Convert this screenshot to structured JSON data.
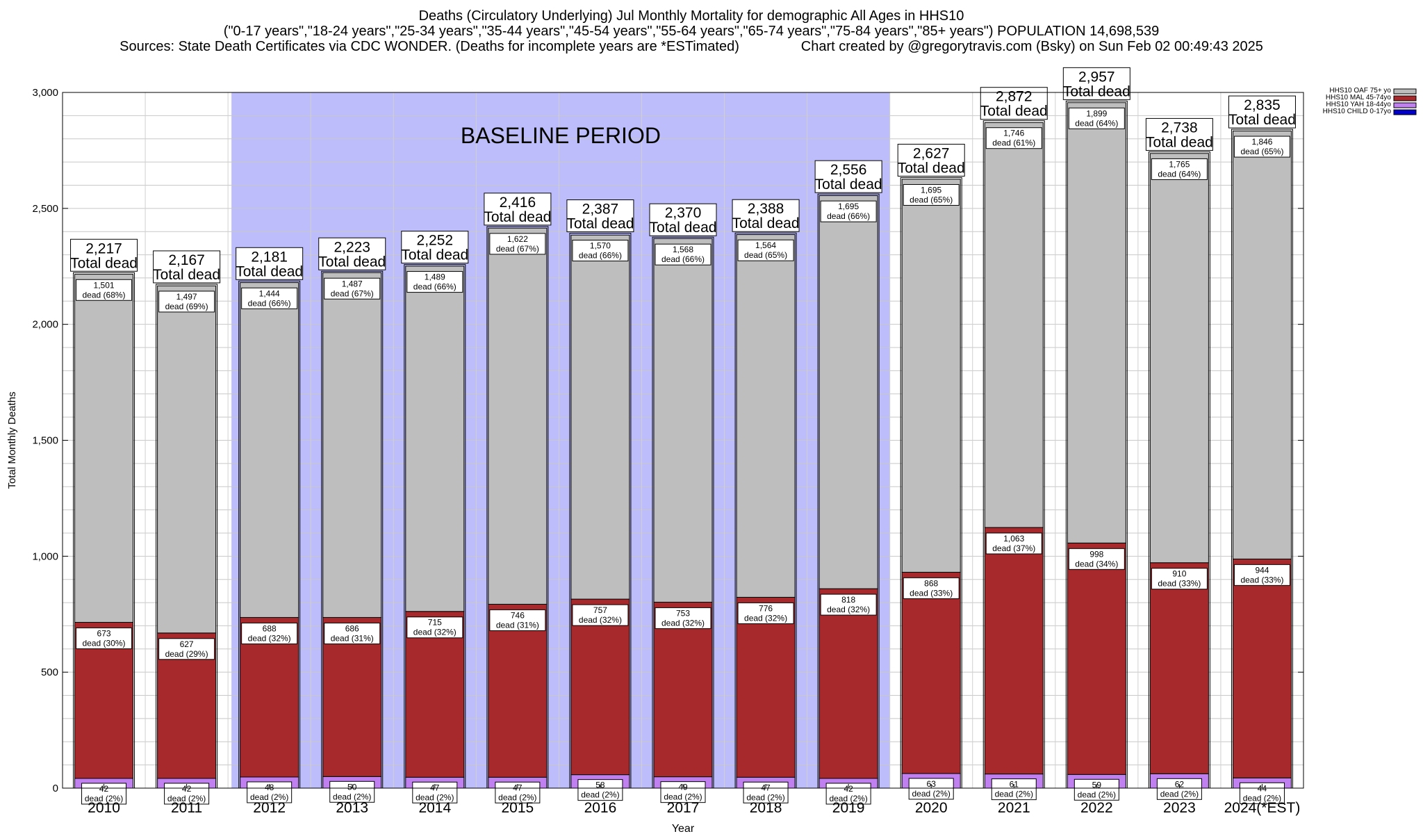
{
  "header": {
    "line1": "Deaths (Circulatory Underlying) Jul Monthly Mortality for demographic All Ages in HHS10",
    "line2": "(\"0-17 years\",\"18-24 years\",\"25-34 years\",\"35-44 years\",\"45-54 years\",\"55-64 years\",\"65-74 years\",\"75-84 years\",\"85+ years\") POPULATION 14,698,539",
    "line3": "Sources: State Death Certificates via CDC WONDER. (Deaths for incomplete years are *ESTimated)                Chart created by @gregorytravis.com (Bsky) on Sun Feb 02 00:49:43 2025"
  },
  "chart_data": {
    "type": "bar",
    "stacked": true,
    "title": "Deaths (Circulatory Underlying) Jul Monthly Mortality for demographic All Ages in HHS10",
    "xlabel": "Year",
    "ylabel": "Total Monthly Deaths",
    "ylim": [
      0,
      3000
    ],
    "yticks": [
      0,
      500,
      1000,
      1500,
      2000,
      2500,
      3000
    ],
    "ytick_labels": [
      "0",
      "500",
      "1,000",
      "1,500",
      "2,000",
      "2,500",
      "3,000"
    ],
    "grid": true,
    "legend_position": "top-right",
    "baseline": {
      "label": "BASELINE PERIOD",
      "start": "2012",
      "end": "2019",
      "color": "#bdbdfb"
    },
    "categories": [
      "2010",
      "2011",
      "2012",
      "2013",
      "2014",
      "2015",
      "2016",
      "2017",
      "2018",
      "2019",
      "2020",
      "2021",
      "2022",
      "2023",
      "2024(*EST)"
    ],
    "totals": [
      2217,
      2167,
      2181,
      2223,
      2252,
      2416,
      2387,
      2370,
      2388,
      2556,
      2627,
      2872,
      2957,
      2738,
      2835
    ],
    "total_label_values": [
      "2,217",
      "2,167",
      "2,181",
      "2,223",
      "2,252",
      "2,416",
      "2,387",
      "2,370",
      "2,388",
      "2,556",
      "2,627",
      "2,872",
      "2,957",
      "2,738",
      "2,835"
    ],
    "total_suffix": "Total dead",
    "dead_word": "dead",
    "series": [
      {
        "name": "HHS10 CHILD 0-17yo",
        "color": "#0000c8",
        "values": [
          0,
          0,
          0,
          0,
          0,
          0,
          0,
          0,
          0,
          0,
          0,
          0,
          0,
          0,
          0
        ],
        "labels": []
      },
      {
        "name": "HHS10 YAH 18-44yo",
        "color": "#c080f0",
        "values": [
          42,
          42,
          48,
          50,
          47,
          47,
          58,
          49,
          47,
          42,
          63,
          61,
          59,
          62,
          44
        ],
        "labels": [
          "42",
          "42",
          "48",
          "50",
          "47",
          "47",
          "58",
          "49",
          "47",
          "42",
          "63",
          "61",
          "59",
          "62",
          "44"
        ],
        "pct_labels": [
          "(2%)",
          "(2%)",
          "(2%)",
          "(2%)",
          "(2%)",
          "(2%)",
          "(2%)",
          "(2%)",
          "(2%)",
          "(2%)",
          "(2%)",
          "(2%)",
          "(2%)",
          "(2%)",
          "(2%)"
        ]
      },
      {
        "name": "HHS10 MAL 45-74yo",
        "color": "#a8292b",
        "values": [
          673,
          627,
          688,
          686,
          715,
          746,
          757,
          753,
          776,
          818,
          868,
          1063,
          998,
          910,
          944
        ],
        "labels": [
          "673",
          "627",
          "688",
          "686",
          "715",
          "746",
          "757",
          "753",
          "776",
          "818",
          "868",
          "1,063",
          "998",
          "910",
          "944"
        ],
        "pct_labels": [
          "(30%)",
          "(29%)",
          "(32%)",
          "(31%)",
          "(32%)",
          "(31%)",
          "(32%)",
          "(32%)",
          "(32%)",
          "(32%)",
          "(33%)",
          "(37%)",
          "(34%)",
          "(33%)",
          "(33%)"
        ]
      },
      {
        "name": "HHS10 OAF 75+ yo",
        "color": "#bebebe",
        "values": [
          1501,
          1497,
          1444,
          1487,
          1489,
          1622,
          1570,
          1568,
          1564,
          1695,
          1695,
          1746,
          1899,
          1765,
          1846
        ],
        "labels": [
          "1,501",
          "1,497",
          "1,444",
          "1,487",
          "1,489",
          "1,622",
          "1,570",
          "1,568",
          "1,564",
          "1,695",
          "1,695",
          "1,746",
          "1,899",
          "1,765",
          "1,846"
        ],
        "pct_labels": [
          "(68%)",
          "(69%)",
          "(66%)",
          "(67%)",
          "(66%)",
          "(67%)",
          "(66%)",
          "(66%)",
          "(65%)",
          "(66%)",
          "(65%)",
          "(61%)",
          "(64%)",
          "(64%)",
          "(65%)"
        ]
      }
    ],
    "legend_order": [
      3,
      2,
      1,
      0
    ]
  }
}
